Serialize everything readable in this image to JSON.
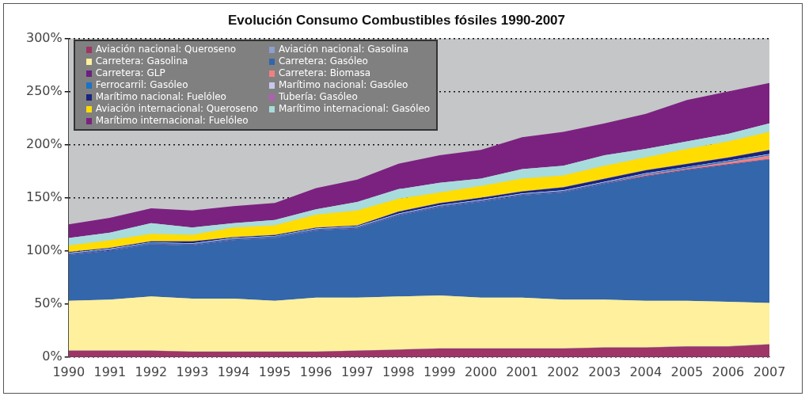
{
  "chart_data": {
    "type": "area",
    "title": "Evolución Consumo Combustibles fósiles 1990-2007",
    "stacked": true,
    "grid": "y",
    "legend": "top left",
    "marker": "none",
    "categories": [
      "1990",
      "1991",
      "1992",
      "1993",
      "1994",
      "1995",
      "1996",
      "1997",
      "1998",
      "1999",
      "2000",
      "2001",
      "2002",
      "2003",
      "2004",
      "2005",
      "2006",
      "2007"
    ],
    "ylim": [
      0,
      300
    ],
    "yticks": [
      {
        "value": 0,
        "label": "0%"
      },
      {
        "value": 50,
        "label": "50%"
      },
      {
        "value": 100,
        "label": "100%"
      },
      {
        "value": 150,
        "label": "150%"
      },
      {
        "value": 200,
        "label": "200%"
      },
      {
        "value": 250,
        "label": "250%"
      },
      {
        "value": 300,
        "label": "300%"
      }
    ],
    "series": [
      {
        "name": "Aviación nacional: Queroseno",
        "color": "#9e3566",
        "values": [
          6,
          6,
          6,
          5,
          5,
          5,
          5,
          6,
          7,
          8,
          8,
          8,
          8,
          9,
          9,
          10,
          10,
          12
        ]
      },
      {
        "name": "Aviación nacional: Gasolina",
        "color": "#8d9ed0",
        "values": [
          0.2,
          0.2,
          0.2,
          0.2,
          0.2,
          0.2,
          0.2,
          0.2,
          0.2,
          0.2,
          0.2,
          0.2,
          0.2,
          0.2,
          0.2,
          0.2,
          0.2,
          0.2
        ]
      },
      {
        "name": "Carretera: Gasolina",
        "color": "#fef09c",
        "values": [
          46.8,
          47.8,
          50.8,
          49.8,
          49.8,
          47.8,
          50.8,
          49.8,
          49.8,
          49.8,
          47.8,
          47.8,
          45.8,
          44.8,
          43.8,
          42.8,
          41.8,
          38.8
        ]
      },
      {
        "name": "Carretera: Gasóleo",
        "color": "#3366aa",
        "values": [
          43,
          46,
          49,
          50,
          55,
          59,
          63,
          65,
          76,
          83,
          90,
          96,
          101,
          109,
          117,
          123,
          129,
          135
        ]
      },
      {
        "name": "Carretera: GLP",
        "color": "#6a2080",
        "values": [
          0.5,
          0.5,
          0.5,
          0.5,
          0.5,
          0.5,
          0.5,
          0.5,
          0.5,
          0.5,
          0.5,
          0.5,
          0.5,
          0.5,
          0.5,
          0.5,
          0.5,
          0.5
        ]
      },
      {
        "name": "Carretera: Biomasa",
        "color": "#f08080",
        "values": [
          0,
          0,
          0,
          0,
          0,
          0,
          0,
          0,
          0,
          0,
          0,
          0,
          0,
          0,
          1,
          1,
          2,
          3
        ]
      },
      {
        "name": "Ferrocarril: Gasóleo",
        "color": "#1a73c4",
        "values": [
          1,
          1,
          1,
          1,
          1,
          1,
          1,
          1,
          1,
          1,
          1,
          1,
          1,
          1,
          1,
          1,
          1,
          1
        ]
      },
      {
        "name": "Marítimo nacional: Gasóleo",
        "color": "#c8c8ee",
        "values": [
          0.5,
          0.5,
          0.5,
          0.5,
          0.5,
          0.5,
          0.5,
          0.5,
          0.5,
          0.5,
          0.5,
          0.5,
          0.5,
          0.5,
          0.5,
          0.5,
          0.5,
          0.5
        ]
      },
      {
        "name": "Marítimo nacional: Fuelóleo",
        "color": "#1a237e",
        "values": [
          0.8,
          0.8,
          0.8,
          1.8,
          0.8,
          0.8,
          0.8,
          0.8,
          1.8,
          1.8,
          1.8,
          1.8,
          2.8,
          2.8,
          2.8,
          2.8,
          2.8,
          3.8
        ]
      },
      {
        "name": "Tubería: Gasóleo",
        "color": "#b060b0",
        "values": [
          0.2,
          0.2,
          0.2,
          0.2,
          0.2,
          0.2,
          0.2,
          0.2,
          0.2,
          0.2,
          0.2,
          0.2,
          0.2,
          0.2,
          0.2,
          0.2,
          0.2,
          0.2
        ]
      },
      {
        "name": "Aviación internacional: Queroseno",
        "color": "#ffdd00",
        "values": [
          6,
          7,
          7,
          6,
          9,
          9,
          12,
          14,
          12,
          10,
          11,
          12,
          11,
          12,
          12,
          14,
          15,
          17
        ]
      },
      {
        "name": "Marítimo internacional: Gasóleo",
        "color": "#a8dcdc",
        "values": [
          7,
          7,
          10,
          7,
          4,
          5,
          5,
          8,
          9,
          9,
          7,
          9,
          9,
          10,
          8,
          7,
          7,
          8
        ]
      },
      {
        "name": "Marítimo internacional: Fuelóleo",
        "color": "#7b2280",
        "values": [
          13,
          14,
          14,
          16,
          16,
          16,
          20,
          21,
          24,
          26,
          27,
          30,
          32,
          30,
          33,
          39,
          40,
          38
        ]
      }
    ]
  }
}
